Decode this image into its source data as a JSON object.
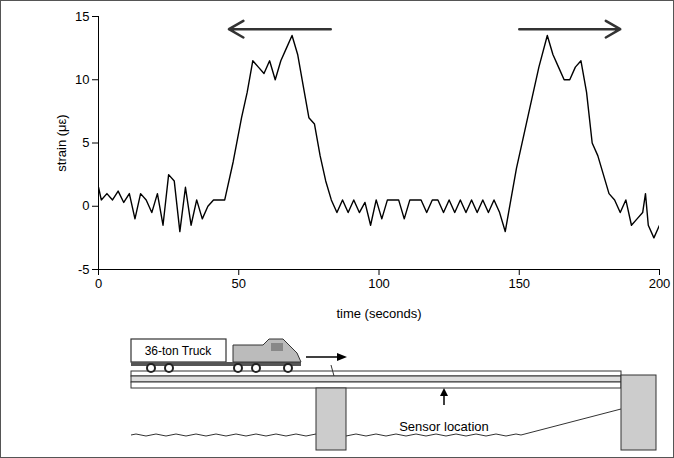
{
  "chart_data": {
    "type": "line",
    "x_label": "time (seconds)",
    "y_label": "strain (με)",
    "x": [
      0,
      1,
      3,
      5,
      7,
      9,
      11,
      13,
      15,
      17,
      19,
      21,
      23,
      25,
      27,
      29,
      31,
      33,
      35,
      37,
      39,
      41,
      43,
      45,
      48,
      51,
      53,
      55,
      57,
      59,
      61,
      63,
      65,
      67,
      69,
      71,
      73,
      75,
      77,
      79,
      81,
      83,
      85,
      87,
      89,
      91,
      93,
      95,
      97,
      99,
      101,
      103,
      105,
      107,
      109,
      111,
      113,
      115,
      117,
      119,
      121,
      123,
      125,
      127,
      129,
      131,
      133,
      135,
      137,
      139,
      141,
      143,
      145,
      147,
      149,
      152,
      155,
      157,
      160,
      162,
      164,
      166,
      168,
      170,
      172,
      174,
      176,
      178,
      180,
      182,
      184,
      186,
      188,
      190,
      192,
      194,
      195,
      196,
      198,
      200
    ],
    "values": [
      1.5,
      0.5,
      1,
      0.5,
      1.2,
      0.3,
      1,
      -1,
      1,
      0.5,
      -0.5,
      1,
      -1.5,
      2.5,
      2,
      -2,
      1.5,
      -1.5,
      0.5,
      -1,
      0,
      0.5,
      0.5,
      0.5,
      3.5,
      7,
      9,
      11.5,
      11,
      10.5,
      11.5,
      10,
      11.5,
      12.5,
      13.5,
      12,
      9.5,
      7,
      6.5,
      4,
      2,
      0.5,
      -0.5,
      0.5,
      -0.5,
      0.5,
      -0.5,
      0.3,
      -1.5,
      0.5,
      -1,
      0.5,
      0.5,
      0.5,
      -1,
      0.5,
      0.5,
      0.5,
      -0.5,
      0.5,
      0.5,
      -0.5,
      0.5,
      -0.5,
      0.5,
      -0.5,
      0.5,
      -0.5,
      0.5,
      -0.5,
      0.5,
      -0.5,
      -2,
      0.5,
      3,
      6,
      9,
      11,
      13.5,
      12,
      11,
      10,
      10,
      11,
      11.5,
      9,
      5,
      4,
      2.5,
      1,
      0.5,
      -0.5,
      0.5,
      -1.5,
      -1,
      -0.5,
      1,
      -1.5,
      -2.5,
      -1.5
    ],
    "color": "#000000",
    "xlim": [
      0,
      200
    ],
    "xticks": [
      0,
      50,
      100,
      150,
      200
    ],
    "ylim": [
      -5,
      15
    ],
    "yticks": [
      -5,
      0,
      5,
      10,
      15
    ],
    "grid": false,
    "annotations": [
      "36-ton Truck",
      "Sensor location"
    ]
  }
}
